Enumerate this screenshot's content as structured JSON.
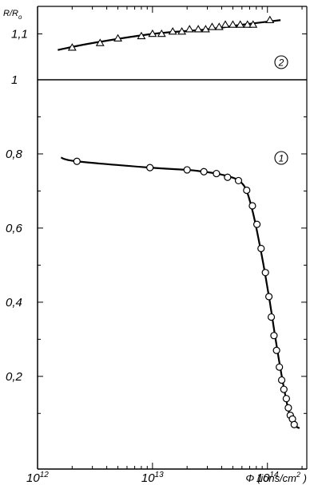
{
  "chart_data": {
    "type": "scatter",
    "ylabel": "R/Ro",
    "xlabel": "Φ (ions/cm²)",
    "x_scale": "log",
    "xlim": [
      1000000000000.0,
      220000000000000.0
    ],
    "x_ticks": [
      {
        "value": 1000000000000.0,
        "label": "10^12"
      },
      {
        "value": 10000000000000.0,
        "label": "10^13"
      },
      {
        "value": 100000000000000.0,
        "label": "10^14"
      }
    ],
    "panels": [
      {
        "id": "upper",
        "ylim": [
          1.0,
          1.16
        ],
        "reference_line": 1.0,
        "y_ticks": [
          {
            "value": 1.1,
            "label": "1,1"
          },
          {
            "value": 1.0,
            "label": "1"
          }
        ],
        "series": [
          {
            "name": "2",
            "marker": "triangle",
            "curve": [
              [
                1500000000000.0,
                1.065
              ],
              [
                3000000000000.0,
                1.08
              ],
              [
                10000000000000.0,
                1.1
              ],
              [
                30000000000000.0,
                1.11
              ],
              [
                60000000000000.0,
                1.12
              ],
              [
                130000000000000.0,
                1.13
              ]
            ],
            "points": [
              [
                2000000000000.0,
                1.07
              ],
              [
                3500000000000.0,
                1.08
              ],
              [
                5000000000000.0,
                1.09
              ],
              [
                8000000000000.0,
                1.095
              ],
              [
                10000000000000.0,
                1.1
              ],
              [
                12000000000000.0,
                1.1
              ],
              [
                15000000000000.0,
                1.105
              ],
              [
                18000000000000.0,
                1.105
              ],
              [
                21000000000000.0,
                1.11
              ],
              [
                25000000000000.0,
                1.11
              ],
              [
                29000000000000.0,
                1.11
              ],
              [
                33000000000000.0,
                1.115
              ],
              [
                38000000000000.0,
                1.115
              ],
              [
                43000000000000.0,
                1.12
              ],
              [
                50000000000000.0,
                1.12
              ],
              [
                58000000000000.0,
                1.12
              ],
              [
                67000000000000.0,
                1.12
              ],
              [
                75000000000000.0,
                1.12
              ],
              [
                105000000000000.0,
                1.13
              ]
            ]
          }
        ]
      },
      {
        "id": "lower",
        "ylim": [
          -0.05,
          1.0
        ],
        "y_ticks": [
          {
            "value": 0.8,
            "label": "0,8"
          },
          {
            "value": 0.6,
            "label": "0,6"
          },
          {
            "value": 0.4,
            "label": "0,4"
          },
          {
            "value": 0.2,
            "label": "0,2"
          }
        ],
        "series": [
          {
            "name": "1",
            "marker": "circle",
            "curve": [
              [
                1600000000000.0,
                0.79
              ],
              [
                2200000000000.0,
                0.78
              ],
              [
                9500000000000.0,
                0.763
              ],
              [
                20000000000000.0,
                0.757
              ],
              [
                28000000000000.0,
                0.752
              ],
              [
                36000000000000.0,
                0.747
              ],
              [
                45000000000000.0,
                0.74
              ],
              [
                55000000000000.0,
                0.73
              ],
              [
                65000000000000.0,
                0.705
              ],
              [
                75000000000000.0,
                0.64
              ],
              [
                85000000000000.0,
                0.56
              ],
              [
                95000000000000.0,
                0.48
              ],
              [
                105000000000000.0,
                0.4
              ],
              [
                115000000000000.0,
                0.32
              ],
              [
                125000000000000.0,
                0.25
              ],
              [
                135000000000000.0,
                0.19
              ],
              [
                145000000000000.0,
                0.14
              ],
              [
                155000000000000.0,
                0.1
              ],
              [
                170000000000000.0,
                0.07
              ],
              [
                190000000000000.0,
                0.06
              ]
            ],
            "points": [
              [
                2200000000000.0,
                0.78
              ],
              [
                9500000000000.0,
                0.763
              ],
              [
                20000000000000.0,
                0.757
              ],
              [
                28000000000000.0,
                0.752
              ],
              [
                36000000000000.0,
                0.747
              ],
              [
                45000000000000.0,
                0.737
              ],
              [
                56000000000000.0,
                0.728
              ],
              [
                66000000000000.0,
                0.702
              ],
              [
                74000000000000.0,
                0.66
              ],
              [
                81000000000000.0,
                0.61
              ],
              [
                88000000000000.0,
                0.545
              ],
              [
                96000000000000.0,
                0.48
              ],
              [
                103000000000000.0,
                0.415
              ],
              [
                108000000000000.0,
                0.36
              ],
              [
                114000000000000.0,
                0.31
              ],
              [
                120000000000000.0,
                0.27
              ],
              [
                127000000000000.0,
                0.225
              ],
              [
                133000000000000.0,
                0.19
              ],
              [
                139000000000000.0,
                0.165
              ],
              [
                146000000000000.0,
                0.14
              ],
              [
                152000000000000.0,
                0.115
              ],
              [
                158000000000000.0,
                0.095
              ],
              [
                165000000000000.0,
                0.085
              ],
              [
                171000000000000.0,
                0.07
              ]
            ]
          }
        ]
      }
    ]
  }
}
